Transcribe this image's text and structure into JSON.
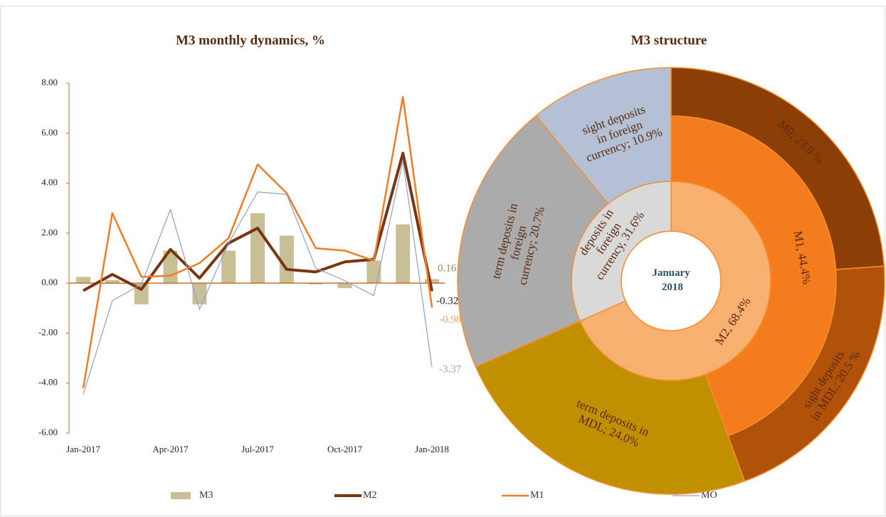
{
  "chart_data": [
    {
      "type": "combo",
      "title": "M3 monthly dynamics, %",
      "categories": [
        "Jan-2017",
        null,
        null,
        "Apr-2017",
        null,
        null,
        "Jul-2017",
        null,
        null,
        "Oct-2017",
        null,
        null,
        "Jan-2018"
      ],
      "ylim": [
        -6,
        8
      ],
      "yticks": [
        {
          "value": -6,
          "label": "-6.00"
        },
        {
          "value": -4,
          "label": "-4.00"
        },
        {
          "value": -2,
          "label": "-2.00"
        },
        {
          "value": 0,
          "label": "0.00"
        },
        {
          "value": 2,
          "label": "2.00"
        },
        {
          "value": 4,
          "label": "4.00"
        },
        {
          "value": 6,
          "label": "6.00"
        },
        {
          "value": 8,
          "label": "8.00"
        }
      ],
      "legend": "bottom",
      "series": [
        {
          "name": "M3",
          "type": "bar",
          "color": "#c9bf97",
          "values": [
            0.25,
            0.12,
            -0.85,
            1.3,
            -0.85,
            1.3,
            2.8,
            1.9,
            -0.05,
            -0.2,
            0.9,
            2.35,
            0.16
          ]
        },
        {
          "name": "M2",
          "type": "line",
          "color": "#7b3410",
          "values": [
            -0.3,
            0.35,
            -0.25,
            1.35,
            0.2,
            1.6,
            2.2,
            0.55,
            0.45,
            0.85,
            0.95,
            5.2,
            -0.32
          ]
        },
        {
          "name": "M1",
          "type": "line",
          "color": "#f07c24",
          "values": [
            -4.2,
            2.8,
            0.25,
            0.3,
            0.8,
            1.8,
            4.75,
            3.6,
            1.4,
            1.3,
            0.9,
            7.45,
            -0.98
          ]
        },
        {
          "name": "MO",
          "type": "line",
          "color": "#8ea0c8",
          "values": [
            -4.45,
            -0.7,
            -0.05,
            2.95,
            -1.05,
            1.6,
            3.65,
            3.55,
            0.6,
            0.1,
            -0.5,
            4.9,
            -3.37
          ]
        }
      ]
    },
    {
      "type": "sunburst",
      "title": "M3 structure",
      "center_label": "January 2018",
      "levels": [
        {
          "labels": [
            "M2, 68.4%",
            "deposits in foreign currency, 31.6%"
          ],
          "values": [
            68.4,
            31.6
          ],
          "colors": [
            "#f8b070",
            "#d9d9d9"
          ]
        },
        {
          "labels": [
            "M1, 44.4%",
            "term deposits in MDL; 24.0%",
            "term deposits in foreign currency; 20.7%",
            "sight deposits in foreign currency; 10.9%"
          ],
          "values": [
            44.4,
            24.0,
            20.7,
            10.9
          ],
          "colors": [
            "#f47c1c",
            "#c09000",
            "#ababab",
            "#b4c0d4"
          ]
        },
        {
          "labels": [
            "M0; 23.9 %",
            "sight deposits in MDL; 20.5 %"
          ],
          "values": [
            23.9,
            20.5
          ],
          "colors": [
            "#8b3f06",
            "#b0520a"
          ]
        }
      ]
    }
  ]
}
